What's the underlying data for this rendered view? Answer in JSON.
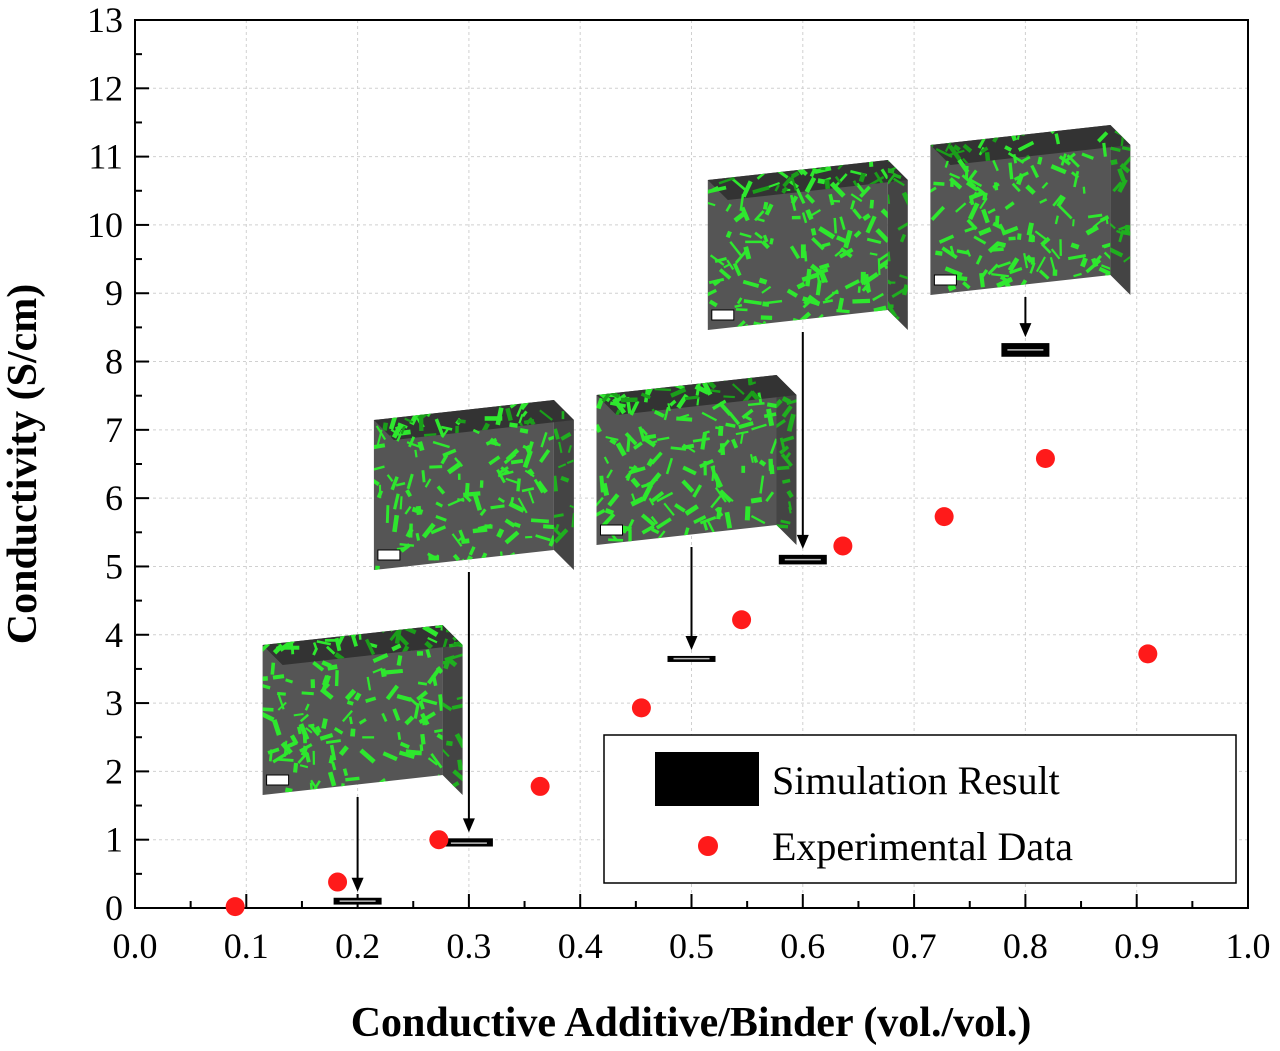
{
  "chart_data": {
    "type": "scatter",
    "xlabel": "Conductive Additive/Binder (vol./vol.)",
    "ylabel": "Conductivity (S/cm)",
    "xlim": [
      0.0,
      1.0
    ],
    "ylim": [
      0,
      13
    ],
    "x_ticks": [
      "0.0",
      "0.1",
      "0.2",
      "0.3",
      "0.4",
      "0.5",
      "0.6",
      "0.7",
      "0.8",
      "0.9",
      "1.0"
    ],
    "y_ticks": [
      "0",
      "1",
      "2",
      "3",
      "4",
      "5",
      "6",
      "7",
      "8",
      "9",
      "10",
      "11",
      "12",
      "13"
    ],
    "grid": true,
    "legend_position": "bottom-right",
    "series": [
      {
        "name": "Simulation Result",
        "marker": "box",
        "color": "#000000",
        "points": [
          {
            "x": 0.2,
            "y": 0.1,
            "low": 0.05,
            "high": 0.15
          },
          {
            "x": 0.3,
            "y": 0.95,
            "low": 0.9,
            "high": 1.02
          },
          {
            "x": 0.5,
            "y": 3.65,
            "low": 3.61,
            "high": 3.69
          },
          {
            "x": 0.6,
            "y": 5.1,
            "low": 5.03,
            "high": 5.17
          },
          {
            "x": 0.8,
            "y": 8.17,
            "low": 8.07,
            "high": 8.27
          }
        ]
      },
      {
        "name": "Experimental Data",
        "marker": "circle",
        "color": "#ff1a1a",
        "points": [
          {
            "x": 0.09,
            "y": 0.02
          },
          {
            "x": 0.182,
            "y": 0.38
          },
          {
            "x": 0.273,
            "y": 1.0
          },
          {
            "x": 0.364,
            "y": 1.78
          },
          {
            "x": 0.455,
            "y": 2.93
          },
          {
            "x": 0.545,
            "y": 4.22
          },
          {
            "x": 0.636,
            "y": 5.3
          },
          {
            "x": 0.727,
            "y": 5.73
          },
          {
            "x": 0.818,
            "y": 6.58
          },
          {
            "x": 0.91,
            "y": 3.72
          }
        ]
      }
    ],
    "inset_cubes": [
      {
        "target_x": 0.2,
        "target_y": 0.1,
        "name": "microstructure-cube-0.2"
      },
      {
        "target_x": 0.3,
        "target_y": 0.95,
        "name": "microstructure-cube-0.3"
      },
      {
        "target_x": 0.5,
        "target_y": 3.65,
        "name": "microstructure-cube-0.5"
      },
      {
        "target_x": 0.6,
        "target_y": 5.1,
        "name": "microstructure-cube-0.6"
      },
      {
        "target_x": 0.8,
        "target_y": 8.17,
        "name": "microstructure-cube-0.8"
      }
    ],
    "colors": {
      "cube_matrix": "#555555",
      "cube_additive": "#2ee82e",
      "experimental": "#ff1a1a",
      "simulation": "#000000"
    }
  }
}
